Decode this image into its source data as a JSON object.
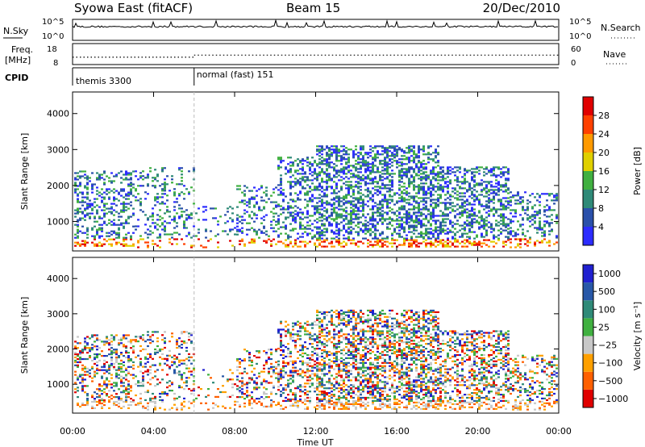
{
  "header": {
    "station": "Syowa East (fitACF)",
    "beam": "Beam 15",
    "date": "20/Dec/2010"
  },
  "strips": {
    "nsky_label": "N.Sky",
    "nsky_ticks": [
      "10^5",
      "10^0"
    ],
    "nsearch_label": "N.Search",
    "nsearch_ticks": [
      "10^5",
      "10^0"
    ],
    "freq_label_line1": "Freq.",
    "freq_label_line2": "[MHz]",
    "freq_ticks": [
      "18",
      "8"
    ],
    "nave_label": "Nave",
    "nave_ticks": [
      "60",
      "0"
    ],
    "freq_level_mhz": [
      11.5,
      12.5
    ],
    "cpid_label": "CPID",
    "cpid_segments": [
      {
        "label": "themis 3300",
        "start_hour": 0
      },
      {
        "label": "normal (fast) 151",
        "start_hour": 6
      }
    ]
  },
  "chart_data": [
    {
      "type": "heatmap",
      "ylabel": "Slant Range [km]",
      "ylim": [
        180,
        4600
      ],
      "yticks": [
        "1000",
        "2000",
        "3000",
        "4000"
      ],
      "ytick_values": [
        1000,
        2000,
        3000,
        4000
      ],
      "colorbar_label": "Power [dB]",
      "colorbar_ticks": [
        "4",
        "8",
        "12",
        "16",
        "20",
        "24",
        "28"
      ],
      "colorbar_colors": [
        "#2c2cff",
        "#2a50aa",
        "#2f8a78",
        "#40b040",
        "#e0d000",
        "#ff9a00",
        "#ff4000",
        "#e00000"
      ],
      "xlim_hours": [
        0,
        24
      ],
      "data_ranges_km": [
        [
          200,
          3400
        ]
      ]
    },
    {
      "type": "heatmap",
      "ylabel": "Slant Range [km]",
      "ylim": [
        180,
        4600
      ],
      "yticks": [
        "1000",
        "2000",
        "3000",
        "4000"
      ],
      "ytick_values": [
        1000,
        2000,
        3000,
        4000
      ],
      "colorbar_label": "Velocity [m s⁻¹]",
      "colorbar_ticks": [
        "1000",
        "500",
        "100",
        "25",
        "−25",
        "−100",
        "−500",
        "−1000"
      ],
      "colorbar_colors": [
        "#2020d0",
        "#2858a8",
        "#2f8a78",
        "#40b040",
        "#c8c8c8",
        "#ffa000",
        "#ff6000",
        "#e00000"
      ],
      "xlim_hours": [
        0,
        24
      ],
      "data_ranges_km": [
        [
          200,
          3400
        ]
      ]
    }
  ],
  "xaxis": {
    "label": "Time UT",
    "ticks": [
      "00:00",
      "04:00",
      "08:00",
      "12:00",
      "16:00",
      "20:00",
      "00:00"
    ],
    "tick_hours": [
      0,
      4,
      8,
      12,
      16,
      20,
      24
    ]
  }
}
